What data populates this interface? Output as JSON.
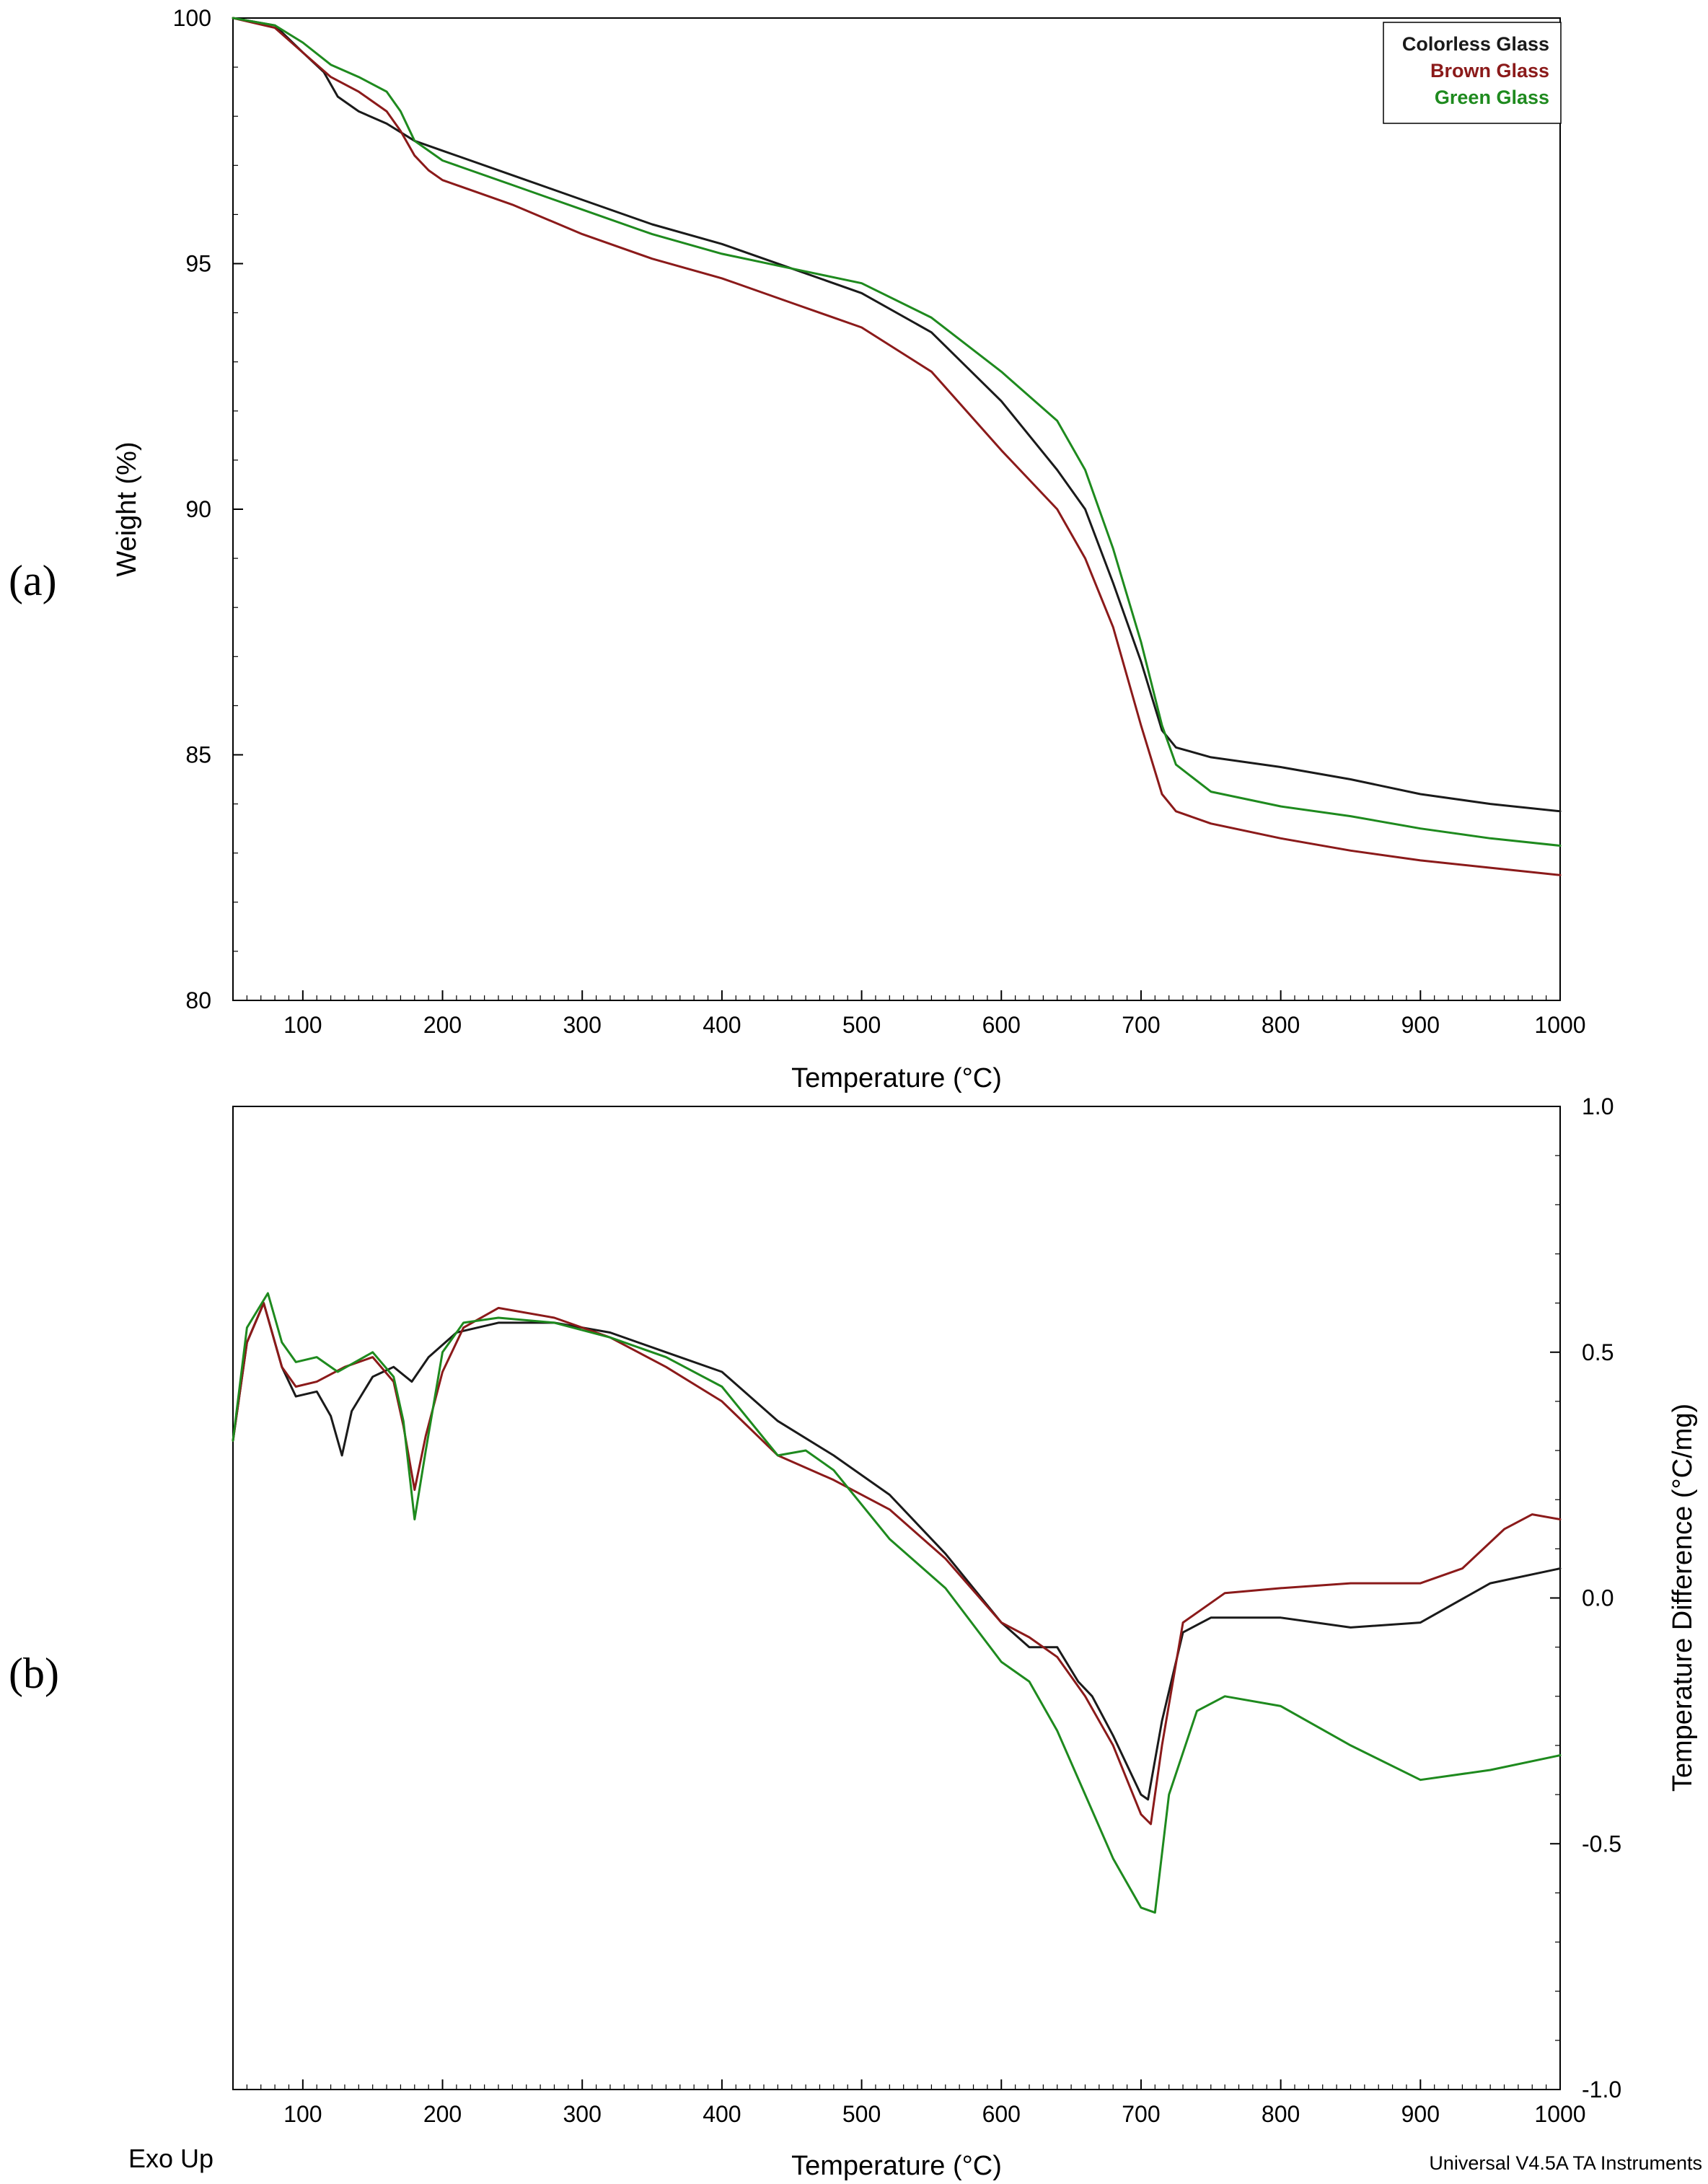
{
  "panels": {
    "a": {
      "label": "(a)"
    },
    "b": {
      "label": "(b)"
    }
  },
  "legend": {
    "entries": [
      {
        "name": "Colorless Glass",
        "color": "#1a1a1a"
      },
      {
        "name": "Brown Glass",
        "color": "#8b1a1a"
      },
      {
        "name": "Green Glass",
        "color": "#1e8a1e"
      }
    ]
  },
  "footer": {
    "left": "Exo Up",
    "right": "Universal V4.5A TA Instruments"
  },
  "chart_data": [
    {
      "id": "tga",
      "type": "line",
      "title": "",
      "xlabel": "Temperature (°C)",
      "ylabel": "Weight (%)",
      "xlim": [
        50,
        1000
      ],
      "ylim": [
        80,
        100
      ],
      "x_ticks": [
        100,
        200,
        300,
        400,
        500,
        600,
        700,
        800,
        900,
        1000
      ],
      "y_ticks": [
        80,
        85,
        90,
        95,
        100
      ],
      "series": [
        {
          "name": "Colorless Glass",
          "color": "#1a1a1a",
          "x": [
            50,
            80,
            100,
            115,
            125,
            140,
            160,
            180,
            200,
            250,
            300,
            350,
            400,
            450,
            500,
            550,
            600,
            640,
            660,
            680,
            700,
            715,
            725,
            750,
            800,
            850,
            900,
            950,
            1000
          ],
          "y": [
            100,
            99.85,
            99.3,
            98.9,
            98.4,
            98.1,
            97.85,
            97.5,
            97.3,
            96.8,
            96.3,
            95.8,
            95.4,
            94.9,
            94.4,
            93.6,
            92.2,
            90.8,
            90.0,
            88.5,
            86.9,
            85.5,
            85.15,
            84.95,
            84.75,
            84.5,
            84.2,
            84.0,
            83.85
          ]
        },
        {
          "name": "Brown Glass",
          "color": "#8b1a1a",
          "x": [
            50,
            80,
            100,
            120,
            140,
            160,
            170,
            180,
            190,
            200,
            250,
            300,
            350,
            400,
            450,
            500,
            550,
            600,
            640,
            660,
            680,
            700,
            715,
            725,
            750,
            800,
            850,
            900,
            950,
            1000
          ],
          "y": [
            100,
            99.8,
            99.3,
            98.8,
            98.5,
            98.1,
            97.7,
            97.2,
            96.9,
            96.7,
            96.2,
            95.6,
            95.1,
            94.7,
            94.2,
            93.7,
            92.8,
            91.2,
            90.0,
            89.0,
            87.6,
            85.6,
            84.2,
            83.85,
            83.6,
            83.3,
            83.05,
            82.85,
            82.7,
            82.55
          ]
        },
        {
          "name": "Green Glass",
          "color": "#1e8a1e",
          "x": [
            50,
            80,
            100,
            120,
            140,
            160,
            170,
            180,
            190,
            200,
            250,
            300,
            350,
            400,
            450,
            500,
            550,
            600,
            640,
            660,
            680,
            700,
            715,
            725,
            750,
            800,
            850,
            900,
            950,
            1000
          ],
          "y": [
            100,
            99.85,
            99.5,
            99.05,
            98.8,
            98.5,
            98.1,
            97.5,
            97.3,
            97.1,
            96.6,
            96.1,
            95.6,
            95.2,
            94.9,
            94.6,
            93.9,
            92.8,
            91.8,
            90.8,
            89.2,
            87.3,
            85.6,
            84.8,
            84.25,
            83.95,
            83.75,
            83.5,
            83.3,
            83.15
          ]
        }
      ]
    },
    {
      "id": "dta",
      "type": "line",
      "title": "",
      "xlabel": "Temperature (°C)",
      "ylabel": "Temperature Difference (°C/mg)",
      "xlim": [
        50,
        1000
      ],
      "ylim": [
        -1.0,
        1.0
      ],
      "x_ticks": [
        100,
        200,
        300,
        400,
        500,
        600,
        700,
        800,
        900,
        1000
      ],
      "y_ticks": [
        -1.0,
        -0.5,
        0.0,
        0.5,
        1.0
      ],
      "y_tick_labels": [
        "-1.0",
        "-0.5",
        "0.0",
        "0.5",
        "1.0"
      ],
      "series": [
        {
          "name": "Colorless Glass",
          "color": "#1a1a1a",
          "x": [
            50,
            60,
            72,
            85,
            95,
            110,
            120,
            128,
            135,
            150,
            165,
            178,
            190,
            210,
            240,
            280,
            320,
            360,
            400,
            440,
            480,
            520,
            560,
            600,
            620,
            640,
            655,
            665,
            680,
            700,
            705,
            715,
            730,
            750,
            800,
            850,
            900,
            950,
            1000
          ],
          "y": [
            0.32,
            0.52,
            0.6,
            0.47,
            0.41,
            0.42,
            0.37,
            0.29,
            0.38,
            0.45,
            0.47,
            0.44,
            0.49,
            0.54,
            0.56,
            0.56,
            0.54,
            0.5,
            0.46,
            0.36,
            0.29,
            0.21,
            0.09,
            -0.05,
            -0.1,
            -0.1,
            -0.17,
            -0.2,
            -0.28,
            -0.4,
            -0.41,
            -0.25,
            -0.07,
            -0.04,
            -0.04,
            -0.06,
            -0.05,
            0.03,
            0.06
          ]
        },
        {
          "name": "Brown Glass",
          "color": "#8b1a1a",
          "x": [
            50,
            60,
            72,
            85,
            95,
            110,
            130,
            150,
            165,
            172,
            180,
            188,
            200,
            215,
            240,
            280,
            320,
            360,
            400,
            440,
            480,
            520,
            560,
            600,
            620,
            640,
            660,
            680,
            700,
            707,
            715,
            730,
            760,
            800,
            850,
            900,
            930,
            960,
            980,
            1000
          ],
          "y": [
            0.32,
            0.52,
            0.6,
            0.47,
            0.43,
            0.44,
            0.47,
            0.49,
            0.44,
            0.35,
            0.22,
            0.33,
            0.46,
            0.55,
            0.59,
            0.57,
            0.53,
            0.47,
            0.4,
            0.29,
            0.24,
            0.18,
            0.08,
            -0.05,
            -0.08,
            -0.12,
            -0.2,
            -0.3,
            -0.44,
            -0.46,
            -0.3,
            -0.05,
            0.01,
            0.02,
            0.03,
            0.03,
            0.06,
            0.14,
            0.17,
            0.16
          ]
        },
        {
          "name": "Green Glass",
          "color": "#1e8a1e",
          "x": [
            50,
            60,
            75,
            85,
            95,
            110,
            125,
            150,
            165,
            172,
            180,
            188,
            200,
            215,
            240,
            280,
            320,
            360,
            400,
            440,
            460,
            480,
            520,
            560,
            600,
            620,
            640,
            660,
            680,
            700,
            710,
            720,
            740,
            760,
            800,
            850,
            900,
            950,
            1000
          ],
          "y": [
            0.32,
            0.55,
            0.62,
            0.52,
            0.48,
            0.49,
            0.46,
            0.5,
            0.45,
            0.36,
            0.16,
            0.3,
            0.5,
            0.56,
            0.57,
            0.56,
            0.53,
            0.49,
            0.43,
            0.29,
            0.3,
            0.26,
            0.12,
            0.02,
            -0.13,
            -0.17,
            -0.27,
            -0.4,
            -0.53,
            -0.63,
            -0.64,
            -0.4,
            -0.23,
            -0.2,
            -0.22,
            -0.3,
            -0.37,
            -0.35,
            -0.32
          ]
        }
      ]
    }
  ]
}
